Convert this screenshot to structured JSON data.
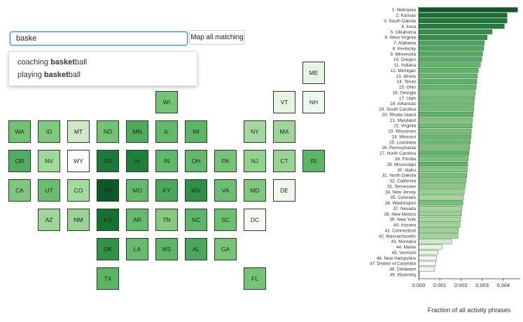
{
  "search": {
    "value": "baske",
    "button_label": "Map all matching"
  },
  "suggestions": [
    {
      "prefix": "coaching ",
      "match": "basket",
      "rest": "ball"
    },
    {
      "prefix": "playing ",
      "match": "basket",
      "rest": "ball"
    }
  ],
  "map_tiles": [
    {
      "state": "ME",
      "row": 0,
      "col": 10,
      "color": "#e7f5e3"
    },
    {
      "state": "WI",
      "row": 1,
      "col": 5,
      "color": "#74c476"
    },
    {
      "state": "VT",
      "row": 1,
      "col": 9,
      "color": "#e6f4e1"
    },
    {
      "state": "NH",
      "row": 1,
      "col": 10,
      "color": "#eff8ec"
    },
    {
      "state": "WA",
      "row": 2,
      "col": 0,
      "color": "#72c374"
    },
    {
      "state": "ID",
      "row": 2,
      "col": 1,
      "color": "#80c97d"
    },
    {
      "state": "MT",
      "row": 2,
      "col": 2,
      "color": "#cfe9c8"
    },
    {
      "state": "ND",
      "row": 2,
      "col": 3,
      "color": "#73c375"
    },
    {
      "state": "MN",
      "row": 2,
      "col": 4,
      "color": "#4eaa5d"
    },
    {
      "state": "IL",
      "row": 2,
      "col": 5,
      "color": "#62b96b"
    },
    {
      "state": "MI",
      "row": 2,
      "col": 6,
      "color": "#5cb667"
    },
    {
      "state": "NY",
      "row": 2,
      "col": 8,
      "color": "#a4d99e"
    },
    {
      "state": "MA",
      "row": 2,
      "col": 9,
      "color": "#9dd698"
    },
    {
      "state": "OR",
      "row": 3,
      "col": 0,
      "color": "#50ac60"
    },
    {
      "state": "NV",
      "row": 3,
      "col": 1,
      "color": "#a1d89c"
    },
    {
      "state": "WY",
      "row": 3,
      "col": 2,
      "color": "#f9fdf7"
    },
    {
      "state": "SD",
      "row": 3,
      "col": 3,
      "color": "#1b7a39"
    },
    {
      "state": "IA",
      "row": 3,
      "col": 4,
      "color": "#1f7e3b"
    },
    {
      "state": "IN",
      "row": 3,
      "col": 5,
      "color": "#60b86a"
    },
    {
      "state": "OH",
      "row": 3,
      "col": 6,
      "color": "#62b96b"
    },
    {
      "state": "PA",
      "row": 3,
      "col": 7,
      "color": "#74c476"
    },
    {
      "state": "NJ",
      "row": 3,
      "col": 8,
      "color": "#93d18e"
    },
    {
      "state": "CT",
      "row": 3,
      "col": 9,
      "color": "#99d493"
    },
    {
      "state": "RI",
      "row": 3,
      "col": 10,
      "color": "#5cb666"
    },
    {
      "state": "CA",
      "row": 4,
      "col": 0,
      "color": "#7ec77c"
    },
    {
      "state": "UT",
      "row": 4,
      "col": 1,
      "color": "#6abd70"
    },
    {
      "state": "CO",
      "row": 4,
      "col": 2,
      "color": "#a5da9f"
    },
    {
      "state": "NE",
      "row": 4,
      "col": 3,
      "color": "#0b5a26"
    },
    {
      "state": "MO",
      "row": 4,
      "col": 4,
      "color": "#64ba6c"
    },
    {
      "state": "KY",
      "row": 4,
      "col": 5,
      "color": "#4aa75c"
    },
    {
      "state": "WV",
      "row": 4,
      "col": 6,
      "color": "#318f48"
    },
    {
      "state": "VA",
      "row": 4,
      "col": 7,
      "color": "#6cbf72"
    },
    {
      "state": "MD",
      "row": 4,
      "col": 8,
      "color": "#7fc87d"
    },
    {
      "state": "DE",
      "row": 4,
      "col": 9,
      "color": "#eef8eb"
    },
    {
      "state": "AZ",
      "row": 5,
      "col": 1,
      "color": "#9dd698"
    },
    {
      "state": "NM",
      "row": 5,
      "col": 2,
      "color": "#99d493"
    },
    {
      "state": "KS",
      "row": 5,
      "col": 3,
      "color": "#167233"
    },
    {
      "state": "AR",
      "row": 5,
      "col": 4,
      "color": "#65ba6d"
    },
    {
      "state": "TN",
      "row": 5,
      "col": 5,
      "color": "#84ca80"
    },
    {
      "state": "NC",
      "row": 5,
      "col": 6,
      "color": "#5db667"
    },
    {
      "state": "SC",
      "row": 5,
      "col": 7,
      "color": "#6ec071"
    },
    {
      "state": "DC",
      "row": 5,
      "col": 8,
      "color": "#f4faf1"
    },
    {
      "state": "OK",
      "row": 6,
      "col": 3,
      "color": "#348f49"
    },
    {
      "state": "LA",
      "row": 6,
      "col": 4,
      "color": "#67bb6e"
    },
    {
      "state": "MS",
      "row": 6,
      "col": 5,
      "color": "#5db667"
    },
    {
      "state": "AL",
      "row": 6,
      "col": 6,
      "color": "#4aa75c"
    },
    {
      "state": "GA",
      "row": 6,
      "col": 7,
      "color": "#78c578"
    },
    {
      "state": "TX",
      "row": 7,
      "col": 3,
      "color": "#5ab565"
    },
    {
      "state": "FL",
      "row": 7,
      "col": 8,
      "color": "#76c477"
    }
  ],
  "chart_data": {
    "type": "bar",
    "orientation": "horizontal",
    "categories": [
      "1. Nebraska",
      "2. Kansas",
      "3. South Dakota",
      "4. Iowa",
      "5. Oklahoma",
      "6. West Virginia",
      "7. Alabama",
      "8. Kentucky",
      "9. Minnesota",
      "10. Oregon",
      "11. Indiana",
      "12. Michigan",
      "13. Illinois",
      "14. Texas",
      "15. Ohio",
      "16. Georgia",
      "17. Utah",
      "18. Arkansas",
      "19. South Carolina",
      "20. Rhode Island",
      "21. Maryland",
      "22. Virginia",
      "23. Wisconsin",
      "24. Missouri",
      "25. Louisiana",
      "26. Pennsylvania",
      "27. North Carolina",
      "28. Florida",
      "29. Mississippi",
      "30. Idaho",
      "31. North Dakota",
      "32. California",
      "33. Tennessee",
      "34. New Jersey",
      "35. Colorado",
      "36. Washington",
      "37. Nevada",
      "38. New Mexico",
      "39. New York",
      "40. Arizona",
      "41. Connecticut",
      "42. Massachusetts",
      "43. Montana",
      "44. Maine",
      "45. Vermont",
      "46. New Hampshire",
      "47. District of Columbia",
      "48. Delaware",
      "49. Wyoming"
    ],
    "values": [
      0.00468,
      0.00418,
      0.00418,
      0.00405,
      0.00347,
      0.00324,
      0.00311,
      0.00307,
      0.00302,
      0.00298,
      0.00292,
      0.00282,
      0.00277,
      0.00275,
      0.00272,
      0.00268,
      0.00265,
      0.00262,
      0.0026,
      0.00258,
      0.00254,
      0.00252,
      0.00249,
      0.00247,
      0.00244,
      0.00241,
      0.00238,
      0.00234,
      0.00232,
      0.0023,
      0.00228,
      0.00224,
      0.0022,
      0.00216,
      0.00213,
      0.00209,
      0.00205,
      0.00202,
      0.00198,
      0.00196,
      0.00188,
      0.00186,
      0.00156,
      0.0011,
      0.0009,
      0.00085,
      0.0008,
      0.00075,
      5e-05
    ],
    "colors": [
      "#0b5a26",
      "#167233",
      "#1b7a39",
      "#1f7e3b",
      "#348f49",
      "#318f48",
      "#4aa75c",
      "#4aa75c",
      "#4eaa5d",
      "#50ac60",
      "#60b86a",
      "#5cb667",
      "#62b96b",
      "#5ab565",
      "#62b96b",
      "#78c578",
      "#6abd70",
      "#65ba6d",
      "#6ec071",
      "#5cb666",
      "#7fc87d",
      "#6cbf72",
      "#74c476",
      "#64ba6c",
      "#67bb6e",
      "#74c476",
      "#5db667",
      "#76c477",
      "#5db667",
      "#80c97d",
      "#73c375",
      "#7ec77c",
      "#84ca80",
      "#93d18e",
      "#a5da9f",
      "#72c374",
      "#a1d89c",
      "#99d493",
      "#a4d99e",
      "#9dd698",
      "#99d493",
      "#9dd698",
      "#cfe9c8",
      "#e7f5e3",
      "#e6f4e1",
      "#eff8ec",
      "#f4faf1",
      "#eef8eb",
      "#f9fdf7"
    ],
    "xlabel": "Fraction of all activity phrases",
    "xticks": [
      "0.000",
      "0.001",
      "0.002",
      "0.003",
      "0.004"
    ],
    "xlim": [
      0,
      0.0048
    ]
  }
}
